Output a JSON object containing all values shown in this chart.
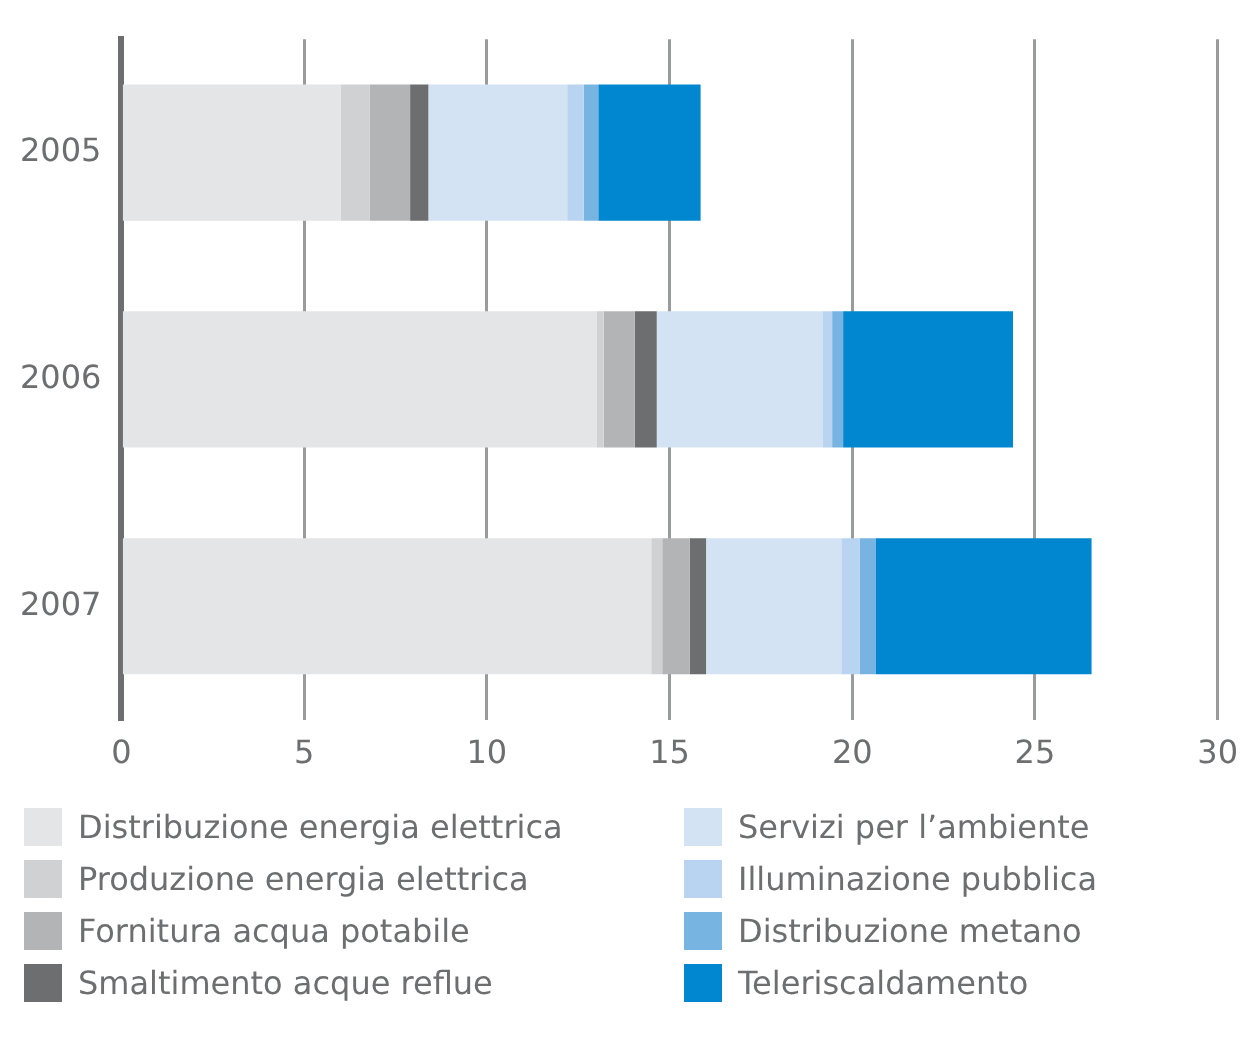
{
  "chart_data": {
    "type": "bar",
    "orientation": "horizontal",
    "stacked": true,
    "categories": [
      "2005",
      "2006",
      "2007"
    ],
    "series": [
      {
        "name": "Distribuzione energia elettrica",
        "color": "#e4e5e7",
        "values": [
          6.0,
          13.0,
          14.5
        ]
      },
      {
        "name": "Produzione energia elettrica",
        "color": "#d0d1d3",
        "values": [
          0.8,
          0.2,
          0.3
        ]
      },
      {
        "name": "Fornitura acqua potabile",
        "color": "#b3b4b6",
        "values": [
          1.1,
          0.85,
          0.75
        ]
      },
      {
        "name": "Smaltimento acque reflue",
        "color": "#6d6e70",
        "values": [
          0.5,
          0.6,
          0.45
        ]
      },
      {
        "name": "Servizi per l’ambiente",
        "color": "#d4e3f4",
        "values": [
          3.8,
          4.55,
          3.7
        ]
      },
      {
        "name": "Illuminazione pubblica",
        "color": "#b8d4f0",
        "values": [
          0.45,
          0.25,
          0.5
        ]
      },
      {
        "name": "Distribuzione metano",
        "color": "#78b4e2",
        "values": [
          0.4,
          0.3,
          0.45
        ]
      },
      {
        "name": "Teleriscaldamento",
        "color": "#0087cf",
        "values": [
          2.8,
          4.65,
          5.9
        ]
      }
    ],
    "xlim": [
      0,
      30
    ],
    "xticks": [
      0,
      5,
      10,
      15,
      20,
      25,
      30
    ],
    "grid": "x",
    "legend": "bottom"
  }
}
